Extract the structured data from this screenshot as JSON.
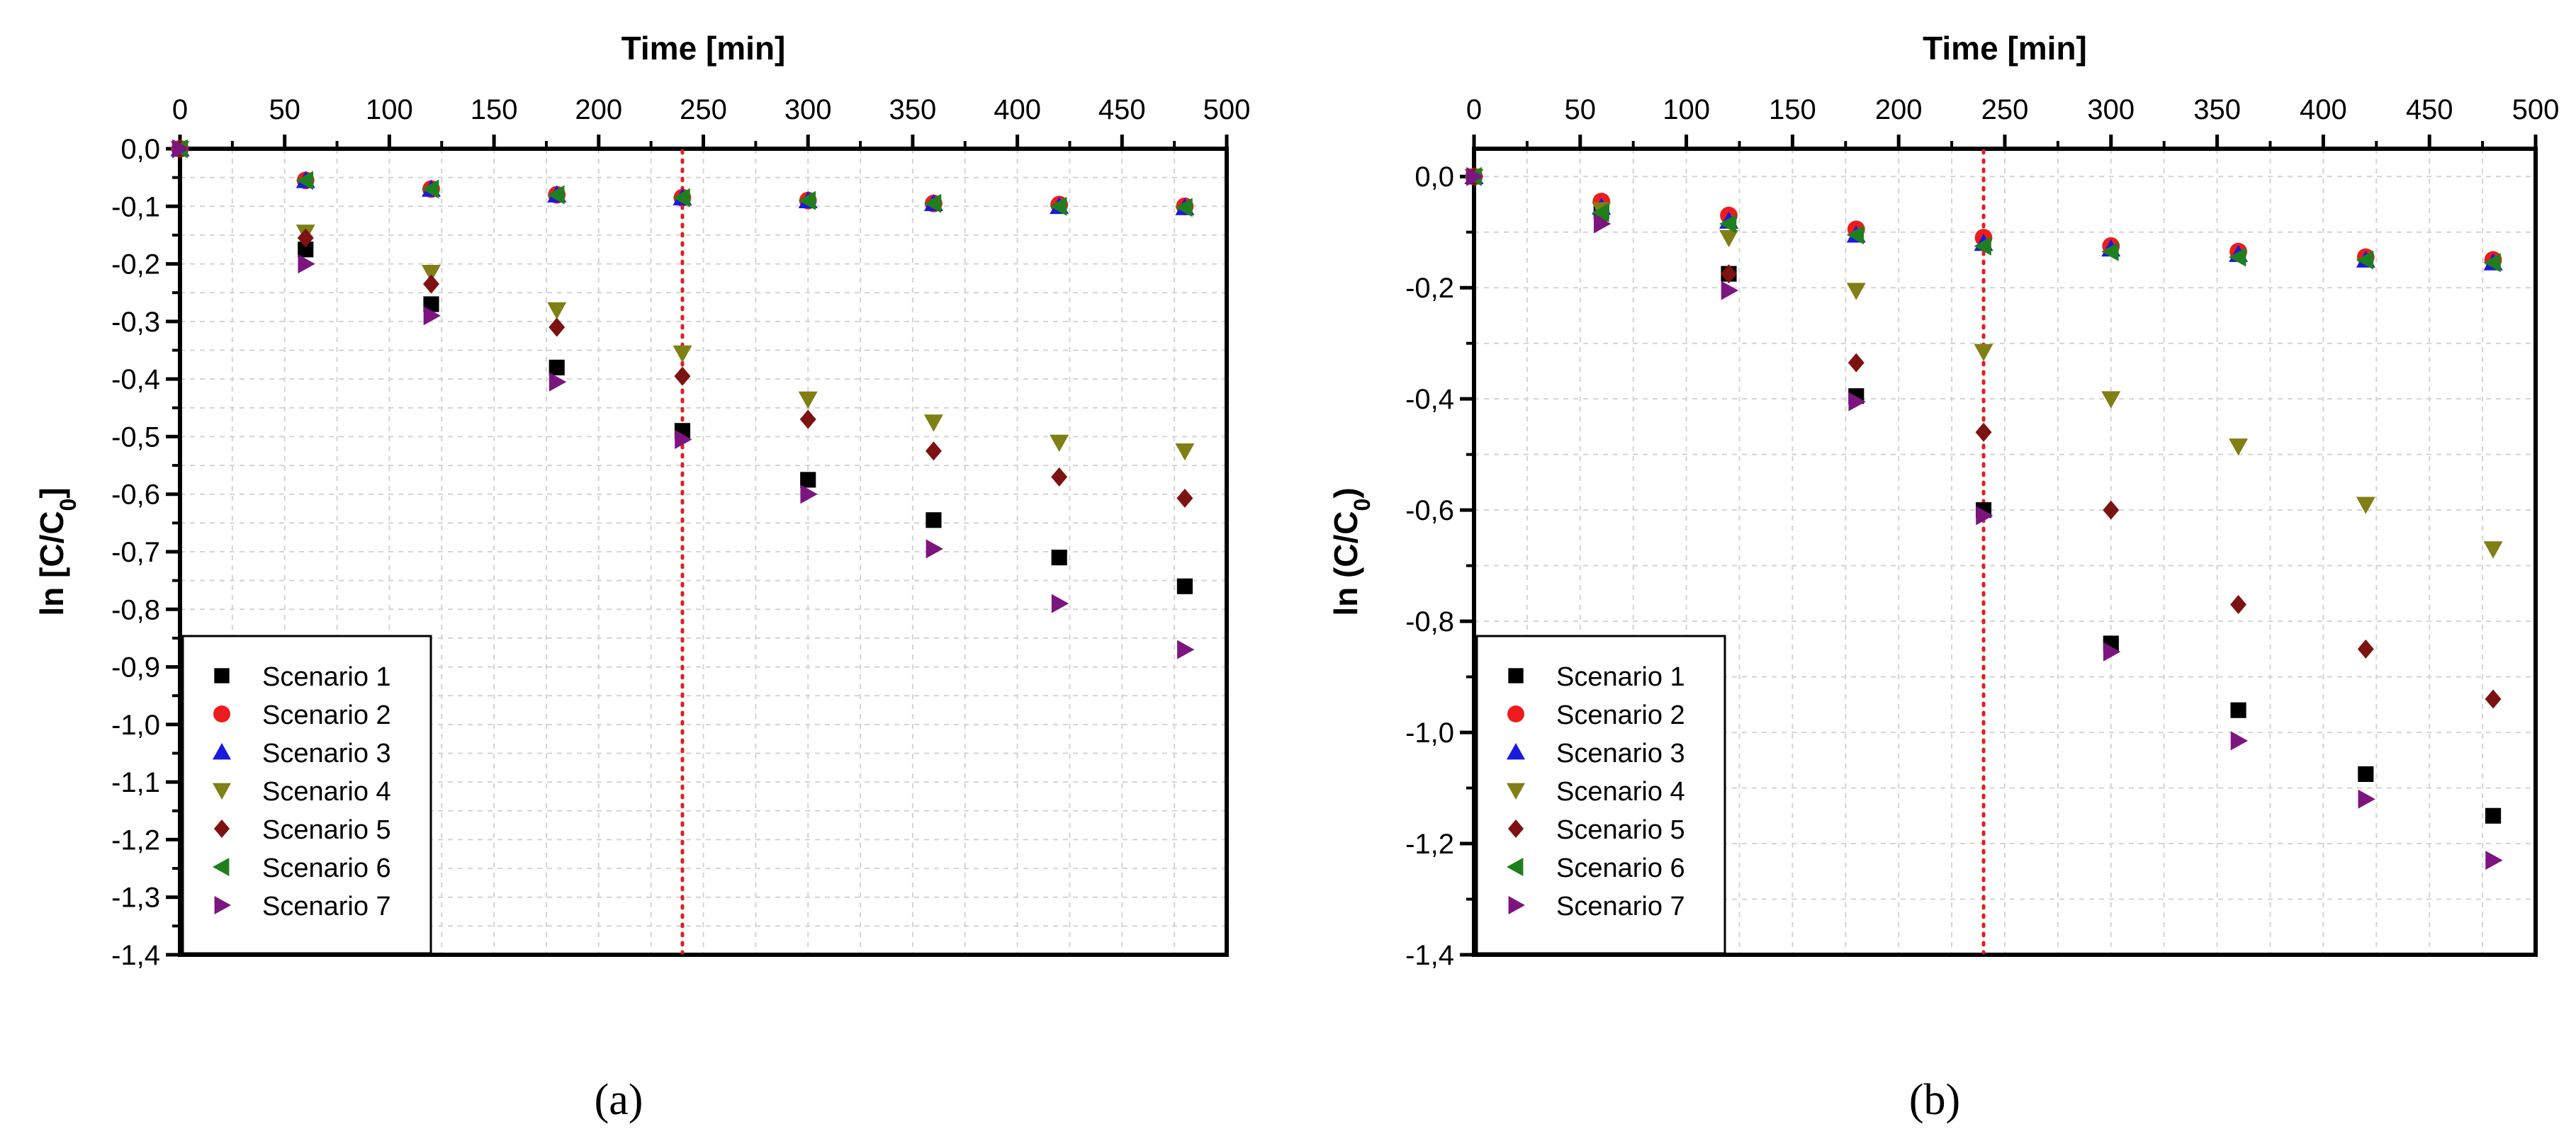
{
  "figure": {
    "panel_labels": [
      "(a)",
      "(b)"
    ]
  },
  "colors": {
    "Scenario 1": "#000000",
    "Scenario 2": "#ee1c1c",
    "Scenario 3": "#1a1adc",
    "Scenario 4": "#7f7f16",
    "Scenario 5": "#7d1212",
    "Scenario 6": "#1f7f1f",
    "Scenario 7": "#7c1580",
    "marker_line": "#e02020"
  },
  "chart_data": [
    {
      "type": "scatter",
      "panel": "(a)",
      "title": "",
      "xlabel": "Time [min]",
      "ylabel": "ln [C/C0]",
      "xlim": [
        0,
        500
      ],
      "ylim": [
        -1.4,
        0
      ],
      "xticks": [
        "0",
        "50",
        "100",
        "150",
        "200",
        "250",
        "300",
        "350",
        "400",
        "450",
        "500"
      ],
      "yticks": [
        "0,0",
        "-0,1",
        "-0,2",
        "-0,3",
        "-0,4",
        "-0,5",
        "-0,6",
        "-0,7",
        "-0,8",
        "-0,9",
        "-1,0",
        "-1,1",
        "-1,2",
        "-1,3",
        "-1,4"
      ],
      "grid": true,
      "reference_line_x": 240,
      "legend_position": "bottom-left",
      "x": [
        0,
        60,
        120,
        180,
        240,
        300,
        360,
        420,
        480
      ],
      "series": [
        {
          "name": "Scenario 1",
          "marker": "square",
          "values": [
            0,
            -0.175,
            -0.27,
            -0.38,
            -0.49,
            -0.575,
            -0.645,
            -0.71,
            -0.76
          ]
        },
        {
          "name": "Scenario 2",
          "marker": "circle",
          "values": [
            0,
            -0.055,
            -0.07,
            -0.08,
            -0.085,
            -0.09,
            -0.095,
            -0.097,
            -0.1
          ]
        },
        {
          "name": "Scenario 3",
          "marker": "triangle-up",
          "values": [
            0,
            -0.055,
            -0.07,
            -0.08,
            -0.085,
            -0.09,
            -0.095,
            -0.1,
            -0.102
          ]
        },
        {
          "name": "Scenario 4",
          "marker": "triangle-down",
          "values": [
            0,
            -0.145,
            -0.215,
            -0.28,
            -0.355,
            -0.435,
            -0.475,
            -0.51,
            -0.525
          ]
        },
        {
          "name": "Scenario 5",
          "marker": "diamond",
          "values": [
            0,
            -0.155,
            -0.235,
            -0.31,
            -0.395,
            -0.47,
            -0.525,
            -0.57,
            -0.607
          ]
        },
        {
          "name": "Scenario 6",
          "marker": "triangle-left",
          "values": [
            0,
            -0.055,
            -0.07,
            -0.08,
            -0.085,
            -0.09,
            -0.095,
            -0.1,
            -0.102
          ]
        },
        {
          "name": "Scenario 7",
          "marker": "triangle-right",
          "values": [
            0,
            -0.2,
            -0.29,
            -0.405,
            -0.505,
            -0.6,
            -0.695,
            -0.79,
            -0.87
          ]
        }
      ]
    },
    {
      "type": "scatter",
      "panel": "(b)",
      "title": "",
      "xlabel": "Time [min]",
      "ylabel": "ln (C/C0)",
      "xlim": [
        0,
        500
      ],
      "ylim": [
        -1.4,
        0.05
      ],
      "xticks": [
        "0",
        "50",
        "100",
        "150",
        "200",
        "250",
        "300",
        "350",
        "400",
        "450",
        "500"
      ],
      "yticks": [
        "0,0",
        "-0,2",
        "-0,4",
        "-0,6",
        "-0,8",
        "-1,0",
        "-1,2",
        "-1,4"
      ],
      "grid": true,
      "reference_line_x": 240,
      "legend_position": "bottom-left",
      "x": [
        0,
        60,
        120,
        180,
        240,
        300,
        360,
        420,
        480
      ],
      "series": [
        {
          "name": "Scenario 1",
          "marker": "square",
          "values": [
            0,
            -0.06,
            -0.175,
            -0.395,
            -0.6,
            -0.84,
            -0.96,
            -1.075,
            -1.15
          ]
        },
        {
          "name": "Scenario 2",
          "marker": "circle",
          "values": [
            0,
            -0.045,
            -0.07,
            -0.095,
            -0.11,
            -0.125,
            -0.135,
            -0.145,
            -0.15
          ]
        },
        {
          "name": "Scenario 3",
          "marker": "triangle-up",
          "values": [
            0,
            -0.055,
            -0.08,
            -0.105,
            -0.12,
            -0.13,
            -0.14,
            -0.15,
            -0.155
          ]
        },
        {
          "name": "Scenario 4",
          "marker": "triangle-down",
          "values": [
            0,
            -0.06,
            -0.11,
            -0.205,
            -0.315,
            -0.4,
            -0.485,
            -0.59,
            -0.67
          ]
        },
        {
          "name": "Scenario 5",
          "marker": "diamond",
          "values": [
            0,
            -0.075,
            -0.175,
            -0.335,
            -0.46,
            -0.6,
            -0.77,
            -0.85,
            -0.94
          ]
        },
        {
          "name": "Scenario 6",
          "marker": "triangle-left",
          "values": [
            0,
            -0.065,
            -0.085,
            -0.105,
            -0.125,
            -0.135,
            -0.145,
            -0.15,
            -0.155
          ]
        },
        {
          "name": "Scenario 7",
          "marker": "triangle-right",
          "values": [
            0,
            -0.085,
            -0.205,
            -0.405,
            -0.61,
            -0.855,
            -1.015,
            -1.12,
            -1.23
          ]
        }
      ]
    }
  ]
}
